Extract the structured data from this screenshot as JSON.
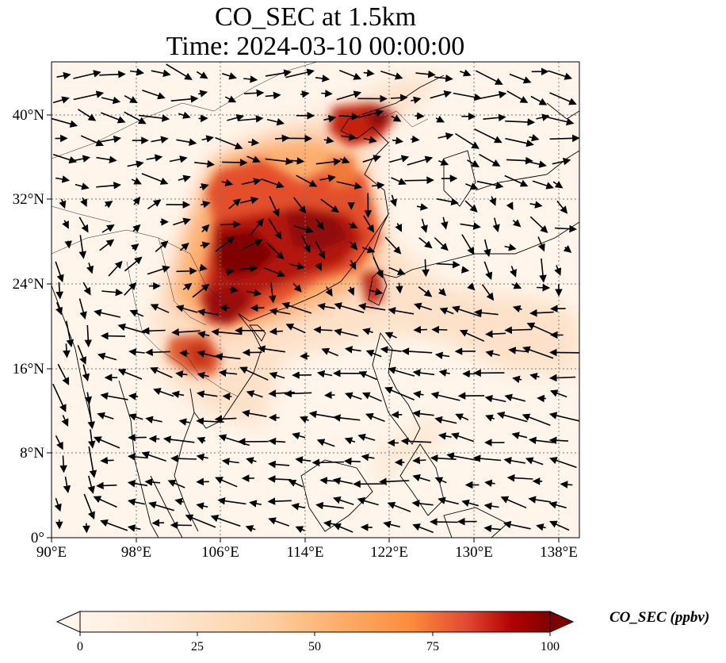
{
  "title": {
    "line1": "CO_SEC at 1.5km",
    "line2": "Time: 2024-03-10 00:00:00"
  },
  "map": {
    "lon_range": [
      90,
      140
    ],
    "lat_range": [
      0,
      45
    ],
    "lon_ticks": [
      "90°E",
      "98°E",
      "106°E",
      "114°E",
      "122°E",
      "130°E",
      "138°E"
    ],
    "lat_ticks": [
      "0°",
      "8°N",
      "16°N",
      "24°N",
      "32°N",
      "40°N"
    ],
    "colormap": [
      "#fff5eb",
      "#fdd0a2",
      "#fd8d3c",
      "#d94801",
      "#a50f15",
      "#7f0000"
    ],
    "field_description": "CO secondary concentration plume, highest over southern and central China, the Gulf of Tonkin coast, Taiwan, the Bohai/Liaodong region and northern Indochina; wind arrows mostly westerly over China and easterly over the South China Sea"
  },
  "colorbar": {
    "label": "CO_SEC (ppbv)",
    "min": 0,
    "max": 100,
    "ticks": [
      "0",
      "25",
      "50",
      "75",
      "100"
    ]
  }
}
